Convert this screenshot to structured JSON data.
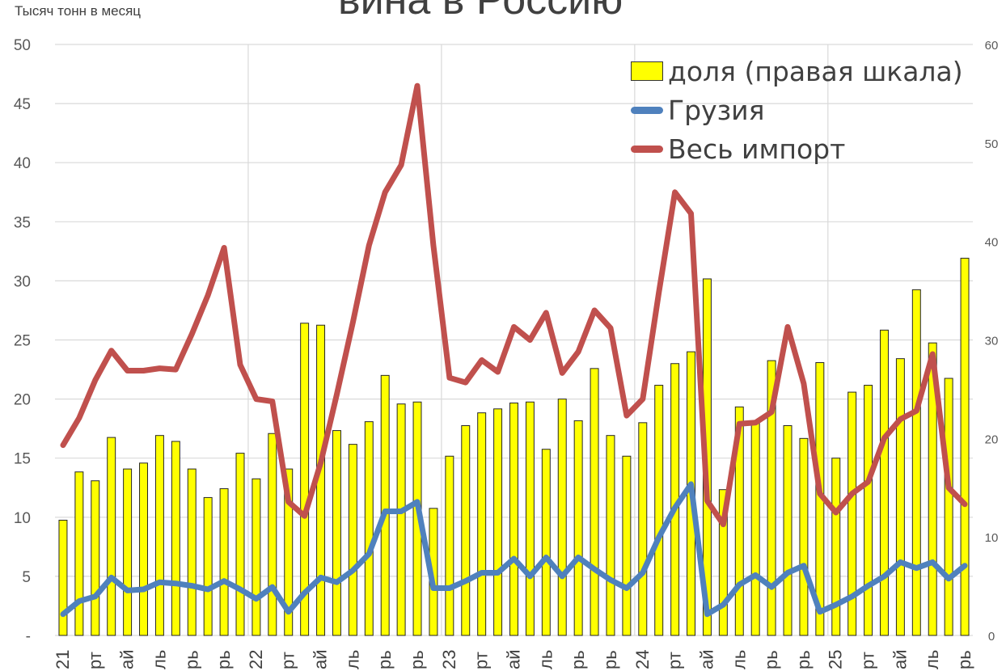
{
  "chart_data": {
    "type": "bar",
    "title": "вина в Россию",
    "ylabel_left": "Тысяч тонн в месяц",
    "left_axis": {
      "ylim": [
        0,
        50
      ],
      "ticks": [
        "-",
        "5",
        "10",
        "15",
        "20",
        "25",
        "30",
        "35",
        "40",
        "45",
        "50"
      ]
    },
    "right_axis": {
      "ylim": [
        0,
        60
      ],
      "ticks": [
        "0",
        "10",
        "20",
        "30",
        "40",
        "50",
        "60"
      ]
    },
    "x_tick_labels": [
      "21",
      "рт",
      "ай",
      "ль",
      "рь",
      "рь",
      "22",
      "рт",
      "ай",
      "ль",
      "рь",
      "рь",
      "23",
      "рт",
      "ай",
      "ль",
      "рь",
      "рь",
      "24",
      "рт",
      "ай",
      "ль",
      "рь",
      "рь",
      "25",
      "рт",
      "ай",
      "ль",
      "рь"
    ],
    "legend_position": "top-right",
    "grid": true,
    "series": [
      {
        "name": "доля (правая шкала)",
        "type": "bar",
        "axis": "right",
        "color": "#ffff00",
        "values": [
          11.7,
          16.6,
          15.7,
          20.1,
          16.9,
          17.5,
          20.3,
          19.7,
          16.9,
          14.0,
          14.9,
          18.5,
          15.9,
          20.5,
          16.9,
          31.7,
          31.5,
          20.8,
          19.4,
          21.7,
          26.4,
          23.5,
          23.7,
          12.9,
          18.2,
          21.3,
          22.6,
          23.0,
          23.6,
          23.7,
          18.9,
          24.0,
          21.8,
          27.1,
          20.3,
          18.2,
          21.6,
          25.4,
          27.6,
          28.8,
          36.2,
          14.8,
          23.2,
          21.6,
          27.9,
          21.3,
          20.0,
          27.7,
          18.0,
          24.7,
          25.4,
          31.0,
          28.1,
          35.1,
          29.7,
          26.1,
          38.3
        ]
      },
      {
        "name": "Грузия",
        "type": "line",
        "axis": "left",
        "color": "#4f81bd",
        "values": [
          1.8,
          2.9,
          3.3,
          4.9,
          3.8,
          3.9,
          4.5,
          4.4,
          4.2,
          3.9,
          4.6,
          3.9,
          3.1,
          4.1,
          2.0,
          3.6,
          4.9,
          4.5,
          5.5,
          6.9,
          10.5,
          10.5,
          11.3,
          4.0,
          4.0,
          4.6,
          5.3,
          5.3,
          6.5,
          5.0,
          6.6,
          5.0,
          6.6,
          5.6,
          4.7,
          4.0,
          5.3,
          8.3,
          10.8,
          12.8,
          1.8,
          2.6,
          4.3,
          5.1,
          4.1,
          5.3,
          5.9,
          2.0,
          2.6,
          3.3,
          4.2,
          5.0,
          6.2,
          5.7,
          6.2,
          4.8,
          5.9
        ]
      },
      {
        "name": "Весь импорт",
        "type": "line",
        "axis": "left",
        "color": "#c0504d",
        "values": [
          16.1,
          18.4,
          21.6,
          24.1,
          22.4,
          22.4,
          22.6,
          22.5,
          25.5,
          28.8,
          32.8,
          22.9,
          20.0,
          19.8,
          11.3,
          10.1,
          14.6,
          20.4,
          26.5,
          33.0,
          37.5,
          39.8,
          46.5,
          33.0,
          21.8,
          21.4,
          23.3,
          22.3,
          26.1,
          25.0,
          27.3,
          22.2,
          24.0,
          27.5,
          26.0,
          18.6,
          20.0,
          29.0,
          37.5,
          35.7,
          11.4,
          9.4,
          17.9,
          18.0,
          18.9,
          26.1,
          21.3,
          12.0,
          10.4,
          12.0,
          13.0,
          16.7,
          18.3,
          19.0,
          23.8,
          12.5,
          11.1
        ]
      }
    ]
  }
}
